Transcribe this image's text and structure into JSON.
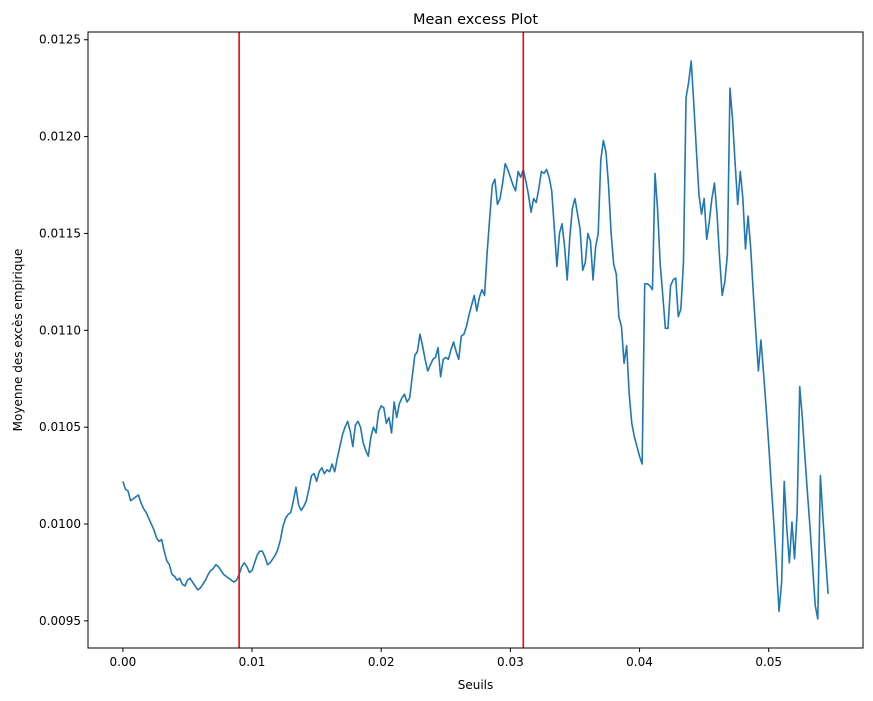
{
  "chart_data": {
    "type": "line",
    "title": "Mean excess Plot",
    "xlabel": "Seuils",
    "ylabel": "Moyenne des excès empirique",
    "xlim": [
      -0.0027,
      0.0573
    ],
    "ylim": [
      0.00936,
      0.01254
    ],
    "xticks": [
      0.0,
      0.01,
      0.02,
      0.03,
      0.04,
      0.05
    ],
    "xtick_labels": [
      "0.00",
      "0.01",
      "0.02",
      "0.03",
      "0.04",
      "0.05"
    ],
    "yticks": [
      0.0095,
      0.01,
      0.0105,
      0.011,
      0.0115,
      0.012,
      0.0125
    ],
    "ytick_labels": [
      "0.0095",
      "0.0100",
      "0.0105",
      "0.0110",
      "0.0115",
      "0.0120",
      "0.0125"
    ],
    "grid": false,
    "colors": {
      "series": "#1f77b4",
      "vline": "#ff0000"
    },
    "vlines": [
      0.009,
      0.031
    ],
    "series": [
      {
        "x": [
          0.0,
          0.0002,
          0.0004,
          0.0006,
          0.0008,
          0.001,
          0.0012,
          0.0014,
          0.0016,
          0.0018,
          0.002,
          0.0022,
          0.0024,
          0.0026,
          0.0028,
          0.003,
          0.0032,
          0.0034,
          0.0036,
          0.0038,
          0.004,
          0.0042,
          0.0044,
          0.0046,
          0.0048,
          0.005,
          0.0052,
          0.0054,
          0.0056,
          0.0058,
          0.006,
          0.0062,
          0.0064,
          0.0066,
          0.0068,
          0.007,
          0.0072,
          0.0074,
          0.0076,
          0.0078,
          0.008,
          0.0082,
          0.0084,
          0.0086,
          0.0088,
          0.009,
          0.0092,
          0.0094,
          0.0096,
          0.0098,
          0.01,
          0.0102,
          0.0104,
          0.0106,
          0.0108,
          0.011,
          0.0112,
          0.0114,
          0.0116,
          0.0118,
          0.012,
          0.0122,
          0.0124,
          0.0126,
          0.0128,
          0.013,
          0.0132,
          0.0134,
          0.0136,
          0.0138,
          0.014,
          0.0142,
          0.0144,
          0.0146,
          0.0148,
          0.015,
          0.0152,
          0.0154,
          0.0156,
          0.0158,
          0.016,
          0.0162,
          0.0164,
          0.0166,
          0.0168,
          0.017,
          0.0172,
          0.0174,
          0.0176,
          0.0178,
          0.018,
          0.0182,
          0.0184,
          0.0186,
          0.0188,
          0.019,
          0.0192,
          0.0194,
          0.0196,
          0.0198,
          0.02,
          0.0202,
          0.0204,
          0.0206,
          0.0208,
          0.021,
          0.0212,
          0.0214,
          0.0216,
          0.0218,
          0.022,
          0.0222,
          0.0224,
          0.0226,
          0.0228,
          0.023,
          0.0232,
          0.0234,
          0.0236,
          0.0238,
          0.024,
          0.0242,
          0.0244,
          0.0246,
          0.0248,
          0.025,
          0.0252,
          0.0254,
          0.0256,
          0.0258,
          0.026,
          0.0262,
          0.0264,
          0.0266,
          0.0268,
          0.027,
          0.0272,
          0.0274,
          0.0276,
          0.0278,
          0.028,
          0.0282,
          0.0284,
          0.0286,
          0.0288,
          0.029,
          0.0292,
          0.0294,
          0.0296,
          0.0298,
          0.03,
          0.0302,
          0.0304,
          0.0306,
          0.0308,
          0.031,
          0.0312,
          0.0314,
          0.0316,
          0.0318,
          0.032,
          0.0322,
          0.0324,
          0.0326,
          0.0328,
          0.033,
          0.0332,
          0.0334,
          0.0336,
          0.0338,
          0.034,
          0.0342,
          0.0344,
          0.0346,
          0.0348,
          0.035,
          0.0352,
          0.0354,
          0.0356,
          0.0358,
          0.036,
          0.0362,
          0.0364,
          0.0366,
          0.0368,
          0.037,
          0.0372,
          0.0374,
          0.0376,
          0.0378,
          0.038,
          0.0382,
          0.0384,
          0.0386,
          0.0388,
          0.039,
          0.0392,
          0.0394,
          0.0396,
          0.0398,
          0.04,
          0.0402,
          0.0404,
          0.0406,
          0.0408,
          0.041,
          0.0412,
          0.0414,
          0.0416,
          0.0418,
          0.042,
          0.0422,
          0.0424,
          0.0426,
          0.0428,
          0.043,
          0.0432,
          0.0434,
          0.0436,
          0.0438,
          0.044,
          0.0442,
          0.0444,
          0.0446,
          0.0448,
          0.045,
          0.0452,
          0.0454,
          0.0456,
          0.0458,
          0.046,
          0.0462,
          0.0464,
          0.0466,
          0.0468,
          0.047,
          0.0472,
          0.0474,
          0.0476,
          0.0478,
          0.048,
          0.0482,
          0.0484,
          0.0486,
          0.0488,
          0.049,
          0.0492,
          0.0494,
          0.0496,
          0.0498,
          0.05,
          0.0502,
          0.0504,
          0.0506,
          0.0508,
          0.051,
          0.0512,
          0.0514,
          0.0516,
          0.0518,
          0.052,
          0.0522,
          0.0524,
          0.0526,
          0.0528,
          0.053,
          0.0532,
          0.0534,
          0.0536,
          0.0538,
          0.054,
          0.0542,
          0.0544,
          0.0546
        ],
        "values": [
          0.01022,
          0.01018,
          0.01017,
          0.01012,
          0.01013,
          0.01014,
          0.01015,
          0.01011,
          0.01008,
          0.01006,
          0.01003,
          0.01,
          0.00997,
          0.00993,
          0.00991,
          0.00992,
          0.00986,
          0.00981,
          0.00979,
          0.00974,
          0.00973,
          0.00971,
          0.00972,
          0.00969,
          0.00968,
          0.00971,
          0.00972,
          0.0097,
          0.00968,
          0.00966,
          0.00967,
          0.00969,
          0.00971,
          0.00974,
          0.00976,
          0.00977,
          0.00979,
          0.00978,
          0.00976,
          0.00974,
          0.00973,
          0.00972,
          0.00971,
          0.0097,
          0.00971,
          0.00974,
          0.00978,
          0.0098,
          0.00978,
          0.00975,
          0.00976,
          0.0098,
          0.00984,
          0.00986,
          0.00986,
          0.00983,
          0.00979,
          0.0098,
          0.00982,
          0.00984,
          0.00987,
          0.00992,
          0.00999,
          0.01003,
          0.01005,
          0.01006,
          0.01012,
          0.01019,
          0.0101,
          0.01007,
          0.01009,
          0.01012,
          0.01018,
          0.01025,
          0.01026,
          0.01022,
          0.01027,
          0.01029,
          0.01026,
          0.01028,
          0.01027,
          0.01031,
          0.01027,
          0.01034,
          0.0104,
          0.01046,
          0.0105,
          0.01053,
          0.01048,
          0.0104,
          0.01051,
          0.01053,
          0.0105,
          0.01042,
          0.01038,
          0.01035,
          0.01045,
          0.0105,
          0.01047,
          0.01058,
          0.01061,
          0.0106,
          0.01052,
          0.01055,
          0.01047,
          0.01063,
          0.01055,
          0.01062,
          0.01065,
          0.01067,
          0.01063,
          0.01065,
          0.01076,
          0.01087,
          0.01089,
          0.01098,
          0.01092,
          0.01085,
          0.01079,
          0.01082,
          0.01085,
          0.01086,
          0.01091,
          0.01076,
          0.01085,
          0.01086,
          0.01085,
          0.0109,
          0.01094,
          0.01089,
          0.01085,
          0.01097,
          0.01098,
          0.01102,
          0.01108,
          0.01113,
          0.01118,
          0.0111,
          0.01117,
          0.01121,
          0.01118,
          0.0114,
          0.01158,
          0.01175,
          0.01178,
          0.01165,
          0.01168,
          0.01176,
          0.01186,
          0.01183,
          0.01179,
          0.01175,
          0.01172,
          0.01182,
          0.01179,
          0.01183,
          0.01177,
          0.0117,
          0.01161,
          0.01168,
          0.01166,
          0.01173,
          0.01182,
          0.01181,
          0.01183,
          0.01179,
          0.01172,
          0.01153,
          0.01133,
          0.0115,
          0.01155,
          0.01143,
          0.01126,
          0.01148,
          0.01163,
          0.01168,
          0.0116,
          0.01152,
          0.01131,
          0.01135,
          0.0115,
          0.01146,
          0.01126,
          0.01143,
          0.0115,
          0.01188,
          0.01198,
          0.01192,
          0.01175,
          0.0115,
          0.01134,
          0.01129,
          0.01107,
          0.01102,
          0.01083,
          0.01092,
          0.01067,
          0.01052,
          0.01045,
          0.0104,
          0.01035,
          0.01031,
          0.01124,
          0.01124,
          0.01123,
          0.01121,
          0.01181,
          0.01162,
          0.01134,
          0.01118,
          0.01101,
          0.01101,
          0.01123,
          0.01126,
          0.01127,
          0.01107,
          0.01111,
          0.01135,
          0.0122,
          0.01228,
          0.01239,
          0.01217,
          0.01193,
          0.0117,
          0.0116,
          0.01168,
          0.01147,
          0.01156,
          0.01168,
          0.01176,
          0.0116,
          0.01137,
          0.01118,
          0.01125,
          0.01139,
          0.01225,
          0.01209,
          0.01186,
          0.01165,
          0.01182,
          0.01168,
          0.01142,
          0.01159,
          0.01143,
          0.0112,
          0.01099,
          0.01079,
          0.01095,
          0.01078,
          0.0106,
          0.01041,
          0.0102,
          0.01,
          0.00978,
          0.00955,
          0.0097,
          0.01022,
          0.00998,
          0.0098,
          0.01001,
          0.00982,
          0.01006,
          0.01071,
          0.01055,
          0.01035,
          0.01016,
          0.00998,
          0.00978,
          0.00958,
          0.00951,
          0.01025,
          0.01003,
          0.00983,
          0.00964
        ]
      }
    ]
  }
}
